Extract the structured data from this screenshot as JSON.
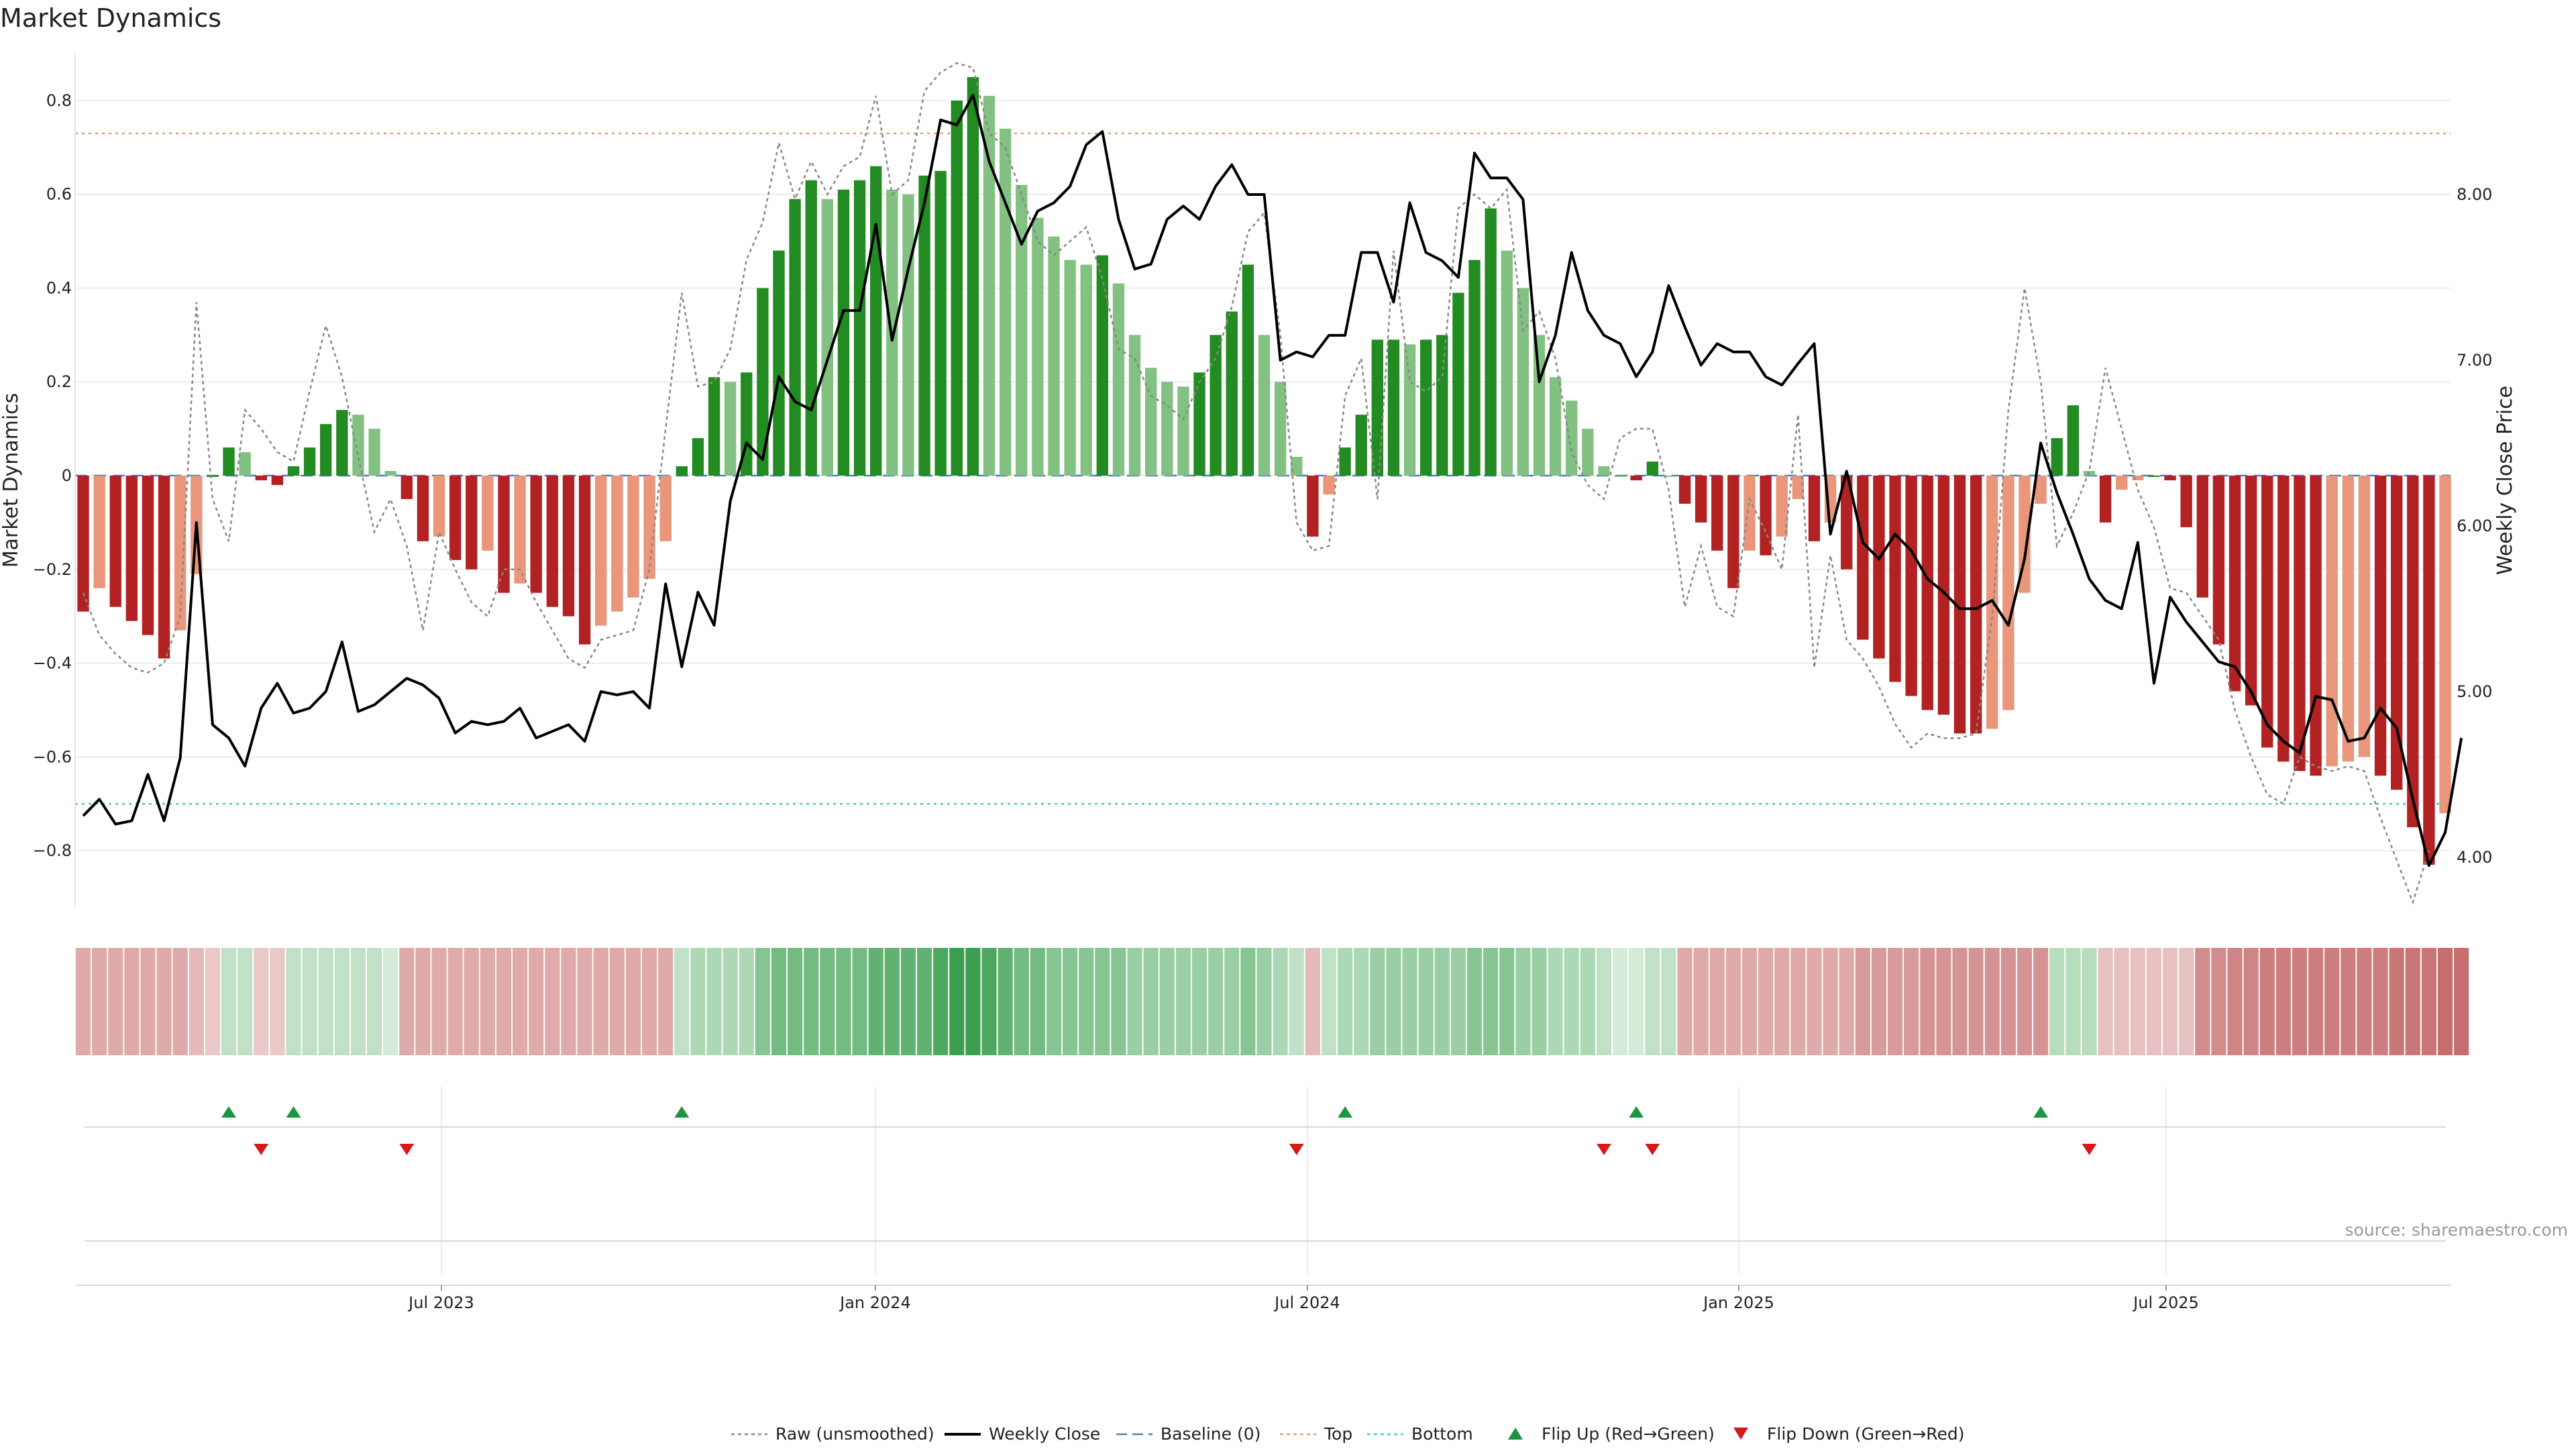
{
  "chart_data": {
    "type": "bar",
    "title": "Market Dynamics",
    "ylabel_left": "Market Dynamics",
    "ylabel_right": "Weekly Close Price",
    "left_ylim": [
      -0.92,
      0.9
    ],
    "left_yticks": [
      -0.8,
      -0.6,
      -0.4,
      -0.2,
      0,
      0.2,
      0.4,
      0.6,
      0.8
    ],
    "right_ylim": [
      3.7,
      8.85
    ],
    "right_yticks": [
      "4.00",
      "5.00",
      "6.00",
      "7.00",
      "8.00"
    ],
    "x_tick_labels": [
      "Jul 2023",
      "Jan 2024",
      "Jul 2024",
      "Jan 2025",
      "Jul 2025"
    ],
    "grid": true,
    "legend_position": "bottom-center",
    "top_line": 0.73,
    "bottom_line": -0.7,
    "baseline": 0,
    "colors": {
      "strong_red": "#b22222",
      "weak_red": "#e9967a",
      "strong_green": "#228b22",
      "weak_green": "#82c182",
      "top_line": "#e0a070",
      "bottom_line": "#40c8c8",
      "baseline": "#4a7fb5",
      "raw": "#888888",
      "close": "#000000",
      "flip_up": "#1a9641",
      "flip_down": "#d7191c"
    },
    "series": [
      {
        "name": "Market Dynamics",
        "values": [
          -0.29,
          -0.24,
          -0.28,
          -0.31,
          -0.34,
          -0.39,
          -0.33,
          -0.21,
          0.0,
          0.06,
          0.05,
          -0.01,
          -0.02,
          0.02,
          0.06,
          0.11,
          0.14,
          0.13,
          0.1,
          0.01,
          -0.05,
          -0.14,
          -0.13,
          -0.18,
          -0.2,
          -0.16,
          -0.25,
          -0.23,
          -0.25,
          -0.28,
          -0.3,
          -0.36,
          -0.32,
          -0.29,
          -0.26,
          -0.22,
          -0.14,
          0.02,
          0.08,
          0.21,
          0.2,
          0.22,
          0.4,
          0.48,
          0.59,
          0.63,
          0.59,
          0.61,
          0.63,
          0.66,
          0.61,
          0.6,
          0.64,
          0.65,
          0.8,
          0.85,
          0.81,
          0.74,
          0.62,
          0.55,
          0.51,
          0.46,
          0.45,
          0.47,
          0.41,
          0.3,
          0.23,
          0.2,
          0.19,
          0.22,
          0.3,
          0.35,
          0.45,
          0.3,
          0.2,
          0.04,
          -0.13,
          -0.04,
          0.06,
          0.13,
          0.29,
          0.29,
          0.28,
          0.29,
          0.3,
          0.39,
          0.46,
          0.57,
          0.48,
          0.4,
          0.3,
          0.21,
          0.16,
          0.1,
          0.02,
          0.0,
          -0.01,
          0.03,
          0.0,
          -0.06,
          -0.1,
          -0.16,
          -0.24,
          -0.16,
          -0.17,
          -0.13,
          -0.05,
          -0.14,
          -0.1,
          -0.2,
          -0.35,
          -0.39,
          -0.44,
          -0.47,
          -0.5,
          -0.51,
          -0.55,
          -0.55,
          -0.54,
          -0.5,
          -0.25,
          -0.06,
          0.08,
          0.15,
          0.01,
          -0.1,
          -0.03,
          -0.01,
          0.0,
          -0.01,
          -0.11,
          -0.26,
          -0.36,
          -0.46,
          -0.49,
          -0.58,
          -0.61,
          -0.63,
          -0.64,
          -0.62,
          -0.61,
          -0.6,
          -0.64,
          -0.67,
          -0.75,
          -0.83,
          -0.72
        ]
      },
      {
        "name": "Raw (unsmoothed)",
        "values": [
          -0.25,
          -0.34,
          -0.38,
          -0.41,
          -0.42,
          -0.4,
          -0.3,
          0.37,
          -0.05,
          -0.14,
          0.14,
          0.1,
          0.05,
          0.03,
          0.18,
          0.32,
          0.21,
          0.04,
          -0.12,
          -0.05,
          -0.15,
          -0.33,
          -0.12,
          -0.2,
          -0.27,
          -0.3,
          -0.2,
          -0.2,
          -0.27,
          -0.33,
          -0.39,
          -0.41,
          -0.35,
          -0.34,
          -0.33,
          -0.2,
          0.1,
          0.39,
          0.19,
          0.2,
          0.27,
          0.46,
          0.54,
          0.71,
          0.59,
          0.67,
          0.6,
          0.66,
          0.68,
          0.81,
          0.6,
          0.63,
          0.82,
          0.86,
          0.88,
          0.87,
          0.73,
          0.7,
          0.6,
          0.5,
          0.47,
          0.5,
          0.53,
          0.42,
          0.27,
          0.25,
          0.17,
          0.15,
          0.12,
          0.2,
          0.25,
          0.36,
          0.52,
          0.56,
          0.3,
          -0.1,
          -0.16,
          -0.15,
          0.17,
          0.25,
          -0.05,
          0.48,
          0.2,
          0.18,
          0.21,
          0.57,
          0.6,
          0.57,
          0.61,
          0.31,
          0.35,
          0.25,
          0.05,
          -0.02,
          -0.05,
          0.08,
          0.1,
          0.1,
          -0.03,
          -0.28,
          -0.15,
          -0.28,
          -0.3,
          -0.05,
          -0.12,
          -0.2,
          0.13,
          -0.41,
          -0.17,
          -0.35,
          -0.39,
          -0.45,
          -0.53,
          -0.58,
          -0.55,
          -0.56,
          -0.56,
          -0.55,
          -0.3,
          0.14,
          0.4,
          0.2,
          -0.15,
          -0.08,
          0.01,
          0.23,
          0.1,
          -0.03,
          -0.11,
          -0.24,
          -0.25,
          -0.3,
          -0.35,
          -0.5,
          -0.6,
          -0.68,
          -0.7,
          -0.6,
          -0.62,
          -0.63,
          -0.62,
          -0.63,
          -0.73,
          -0.82,
          -0.91,
          -0.8
        ]
      },
      {
        "name": "Weekly Close",
        "values": [
          4.25,
          4.35,
          4.2,
          4.22,
          4.5,
          4.22,
          4.6,
          6.02,
          4.8,
          4.72,
          4.55,
          4.9,
          5.05,
          4.87,
          4.9,
          5.0,
          5.3,
          4.88,
          4.92,
          5.0,
          5.08,
          5.04,
          4.96,
          4.75,
          4.82,
          4.8,
          4.82,
          4.9,
          4.72,
          4.76,
          4.8,
          4.7,
          5.0,
          4.98,
          5.0,
          4.9,
          5.65,
          5.15,
          5.6,
          5.4,
          6.15,
          6.5,
          6.4,
          6.9,
          6.75,
          6.7,
          7.0,
          7.3,
          7.3,
          7.82,
          7.12,
          7.55,
          7.95,
          8.45,
          8.42,
          8.6,
          8.2,
          7.95,
          7.7,
          7.9,
          7.95,
          8.05,
          8.3,
          8.38,
          7.85,
          7.55,
          7.58,
          7.85,
          7.93,
          7.85,
          8.05,
          8.18,
          8.0,
          8.0,
          7.0,
          7.05,
          7.02,
          7.15,
          7.15,
          7.65,
          7.65,
          7.35,
          7.95,
          7.65,
          7.6,
          7.5,
          8.25,
          8.1,
          8.1,
          7.97,
          6.87,
          7.15,
          7.65,
          7.3,
          7.15,
          7.1,
          6.9,
          7.05,
          7.45,
          7.2,
          6.97,
          7.1,
          7.05,
          7.05,
          6.9,
          6.85,
          6.98,
          7.1,
          5.95,
          6.33,
          5.9,
          5.8,
          5.95,
          5.85,
          5.68,
          5.6,
          5.5,
          5.5,
          5.55,
          5.4,
          5.8,
          6.5,
          6.2,
          5.95,
          5.68,
          5.55,
          5.5,
          5.9,
          5.05,
          5.57,
          5.42,
          5.3,
          5.18,
          5.15,
          5.0,
          4.8,
          4.7,
          4.63,
          4.97,
          4.95,
          4.7,
          4.72,
          4.9,
          4.78,
          4.35,
          3.95,
          4.15,
          4.72
        ]
      }
    ],
    "heat_strip_levels": [
      -0.3,
      -0.3,
      -0.3,
      -0.3,
      -0.3,
      -0.3,
      -0.3,
      -0.2,
      -0.1,
      0.2,
      0.2,
      -0.1,
      -0.1,
      0.2,
      0.2,
      0.2,
      0.2,
      0.2,
      0.2,
      0.1,
      -0.3,
      -0.3,
      -0.3,
      -0.3,
      -0.3,
      -0.3,
      -0.3,
      -0.3,
      -0.3,
      -0.3,
      -0.3,
      -0.3,
      -0.3,
      -0.3,
      -0.3,
      -0.3,
      -0.3,
      0.2,
      0.3,
      0.3,
      0.3,
      0.3,
      0.5,
      0.6,
      0.6,
      0.6,
      0.6,
      0.6,
      0.6,
      0.7,
      0.7,
      0.7,
      0.7,
      0.8,
      0.9,
      0.9,
      0.8,
      0.7,
      0.6,
      0.6,
      0.5,
      0.5,
      0.5,
      0.5,
      0.5,
      0.4,
      0.4,
      0.4,
      0.4,
      0.4,
      0.4,
      0.4,
      0.5,
      0.4,
      0.3,
      0.2,
      -0.2,
      0.2,
      0.3,
      0.3,
      0.4,
      0.4,
      0.4,
      0.4,
      0.4,
      0.4,
      0.5,
      0.5,
      0.5,
      0.4,
      0.4,
      0.3,
      0.3,
      0.3,
      0.2,
      0.1,
      0.1,
      0.2,
      0.2,
      -0.3,
      -0.3,
      -0.3,
      -0.3,
      -0.3,
      -0.3,
      -0.3,
      -0.3,
      -0.3,
      -0.3,
      -0.3,
      -0.4,
      -0.4,
      -0.4,
      -0.4,
      -0.45,
      -0.45,
      -0.45,
      -0.45,
      -0.45,
      -0.45,
      -0.45,
      -0.45,
      0.25,
      0.25,
      0.25,
      -0.15,
      -0.15,
      -0.15,
      -0.15,
      -0.15,
      -0.15,
      -0.5,
      -0.5,
      -0.55,
      -0.55,
      -0.6,
      -0.6,
      -0.6,
      -0.6,
      -0.6,
      -0.6,
      -0.6,
      -0.6,
      -0.65,
      -0.65,
      -0.65,
      -0.7,
      -0.7
    ],
    "flip_up_indices": [
      9,
      13,
      37,
      78,
      96,
      121
    ],
    "flip_down_indices": [
      11,
      20,
      75,
      94,
      97,
      124
    ],
    "legend": [
      {
        "label": "Raw (unsmoothed)",
        "kind": "dotted-line",
        "color": "#888888"
      },
      {
        "label": "Weekly Close",
        "kind": "solid-line",
        "color": "#000000"
      },
      {
        "label": "Baseline (0)",
        "kind": "dashed-line",
        "color": "#4a7fb5"
      },
      {
        "label": "Top",
        "kind": "dotted-line",
        "color": "#e0a070"
      },
      {
        "label": "Bottom",
        "kind": "dotted-line",
        "color": "#40c8c8"
      },
      {
        "label": "Flip Up (Red→Green)",
        "kind": "triangle-up",
        "color": "#1a9641"
      },
      {
        "label": "Flip Down (Green→Red)",
        "kind": "triangle-down",
        "color": "#d7191c"
      }
    ],
    "source": "source: sharemaestro.com"
  }
}
